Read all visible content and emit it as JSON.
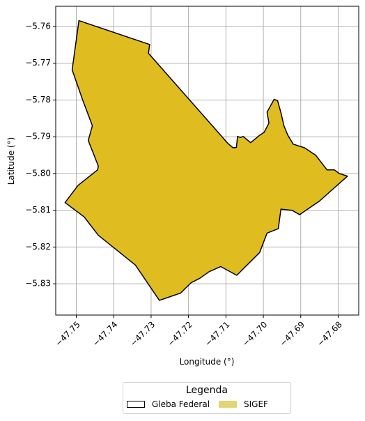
{
  "chart_data": {
    "type": "map",
    "xlabel": "Longitude (°)",
    "ylabel": "Latitude (°)",
    "xlim": [
      -47.7555,
      -47.6745
    ],
    "ylim": [
      -5.8385,
      -5.7545
    ],
    "xticks": [
      -47.75,
      -47.74,
      -47.73,
      -47.72,
      -47.71,
      -47.7,
      -47.69,
      -47.68
    ],
    "xtick_labels": [
      "−47.75",
      "−47.74",
      "−47.73",
      "−47.72",
      "−47.71",
      "−47.70",
      "−47.69",
      "−47.68"
    ],
    "yticks": [
      -5.76,
      -5.77,
      -5.78,
      -5.79,
      -5.8,
      -5.81,
      -5.82,
      -5.83
    ],
    "ytick_labels": [
      "−5.76",
      "−5.77",
      "−5.78",
      "−5.79",
      "−5.80",
      "−5.81",
      "−5.82",
      "−5.83"
    ],
    "grid": true,
    "legend": {
      "title": "Legenda",
      "placement": "bottom-center",
      "entries": [
        {
          "label": "Gleba Federal",
          "style": "outline",
          "color": "#000000"
        },
        {
          "label": "SIGEF",
          "style": "fill",
          "color": "#e6d474"
        }
      ]
    },
    "polygon_color": "#dfbc20",
    "outline_color": "#000000",
    "polygon": [
      [
        -47.7493,
        -5.7584
      ],
      [
        -47.7304,
        -5.7649
      ],
      [
        -47.7307,
        -5.7673
      ],
      [
        -47.7094,
        -5.7919
      ],
      [
        -47.7081,
        -5.793
      ],
      [
        -47.7072,
        -5.7929
      ],
      [
        -47.7069,
        -5.7899
      ],
      [
        -47.7061,
        -5.7902
      ],
      [
        -47.7054,
        -5.7899
      ],
      [
        -47.7034,
        -5.7916
      ],
      [
        -47.701,
        -5.7896
      ],
      [
        -47.6998,
        -5.7888
      ],
      [
        -47.6985,
        -5.7863
      ],
      [
        -47.699,
        -5.7833
      ],
      [
        -47.6971,
        -5.7798
      ],
      [
        -47.6962,
        -5.7802
      ],
      [
        -47.6952,
        -5.7838
      ],
      [
        -47.6945,
        -5.787
      ],
      [
        -47.6935,
        -5.7895
      ],
      [
        -47.692,
        -5.792
      ],
      [
        -47.689,
        -5.793
      ],
      [
        -47.686,
        -5.795
      ],
      [
        -47.683,
        -5.799
      ],
      [
        -47.681,
        -5.799
      ],
      [
        -47.6797,
        -5.8
      ],
      [
        -47.6775,
        -5.8007
      ],
      [
        -47.685,
        -5.8075
      ],
      [
        -47.6903,
        -5.8112
      ],
      [
        -47.6923,
        -5.81
      ],
      [
        -47.6953,
        -5.8097
      ],
      [
        -47.696,
        -5.815
      ],
      [
        -47.699,
        -5.8162
      ],
      [
        -47.701,
        -5.8215
      ],
      [
        -47.7071,
        -5.8277
      ],
      [
        -47.7114,
        -5.8253
      ],
      [
        -47.7145,
        -5.8267
      ],
      [
        -47.717,
        -5.8285
      ],
      [
        -47.7193,
        -5.8297
      ],
      [
        -47.7221,
        -5.8325
      ],
      [
        -47.7278,
        -5.8345
      ],
      [
        -47.7342,
        -5.8249
      ],
      [
        -47.7441,
        -5.8168
      ],
      [
        -47.7479,
        -5.8118
      ],
      [
        -47.753,
        -5.8079
      ],
      [
        -47.7495,
        -5.8032
      ],
      [
        -47.7443,
        -5.799
      ],
      [
        -47.7441,
        -5.798
      ],
      [
        -47.7468,
        -5.791
      ],
      [
        -47.7457,
        -5.787
      ],
      [
        -47.7483,
        -5.78
      ],
      [
        -47.7511,
        -5.7718
      ]
    ]
  }
}
